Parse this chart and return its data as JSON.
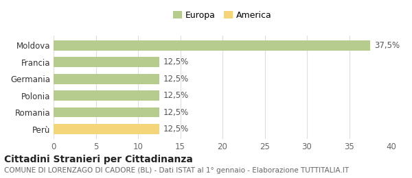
{
  "categories": [
    "Perù",
    "Romania",
    "Polonia",
    "Germania",
    "Francia",
    "Moldova"
  ],
  "values": [
    12.5,
    12.5,
    12.5,
    12.5,
    12.5,
    37.5
  ],
  "colors": [
    "#f5d57a",
    "#b5cc8e",
    "#b5cc8e",
    "#b5cc8e",
    "#b5cc8e",
    "#b5cc8e"
  ],
  "bar_labels": [
    "12,5%",
    "12,5%",
    "12,5%",
    "12,5%",
    "12,5%",
    "37,5%"
  ],
  "xlim": [
    0,
    40
  ],
  "xticks": [
    0,
    5,
    10,
    15,
    20,
    25,
    30,
    35,
    40
  ],
  "title": "Cittadini Stranieri per Cittadinanza",
  "subtitle": "COMUNE DI LORENZAGO DI CADORE (BL) - Dati ISTAT al 1° gennaio - Elaborazione TUTTITALIA.IT",
  "legend_labels": [
    "Europa",
    "America"
  ],
  "legend_colors": [
    "#b5cc8e",
    "#f5d57a"
  ],
  "title_fontsize": 10,
  "subtitle_fontsize": 7.5,
  "label_fontsize": 8.5,
  "tick_fontsize": 8.5,
  "bar_label_fontsize": 8.5,
  "background_color": "#ffffff",
  "grid_color": "#dddddd"
}
